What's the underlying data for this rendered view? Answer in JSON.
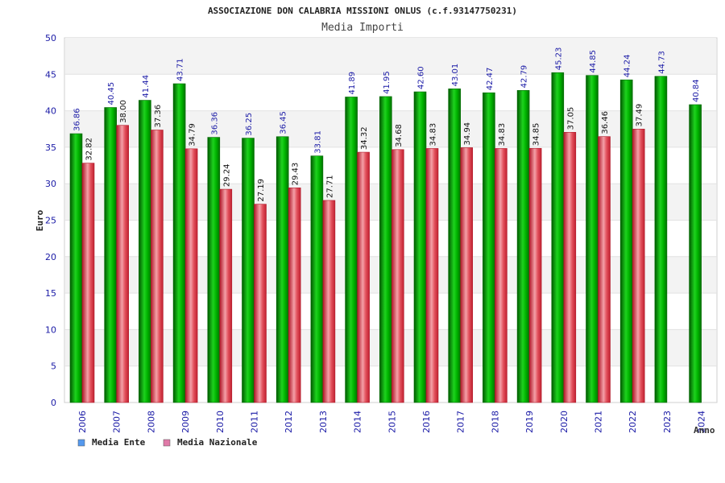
{
  "chart_data": {
    "type": "bar",
    "title": "ASSOCIAZIONE DON CALABRIA MISSIONI ONLUS (c.f.93147750231)",
    "subtitle": "Media Importi",
    "xlabel": "Anno",
    "ylabel": "Euro",
    "ylim": [
      0,
      50
    ],
    "yticks": [
      "0",
      "5",
      "10",
      "15",
      "20",
      "25",
      "30",
      "35",
      "40",
      "45",
      "50"
    ],
    "categories": [
      "2006",
      "2007",
      "2008",
      "2009",
      "2010",
      "2011",
      "2012",
      "2013",
      "2014",
      "2015",
      "2016",
      "2017",
      "2018",
      "2019",
      "2020",
      "2021",
      "2022",
      "2023",
      "2024"
    ],
    "series": [
      {
        "name": "Media Ente",
        "color": "#00b000",
        "values": [
          36.86,
          40.45,
          41.44,
          43.71,
          36.36,
          36.25,
          36.45,
          33.81,
          41.89,
          41.95,
          42.6,
          43.01,
          42.47,
          42.79,
          45.23,
          44.85,
          44.24,
          44.73,
          40.84
        ],
        "labels": [
          "36.86",
          "40.45",
          "41.44",
          "43.71",
          "36.36",
          "36.25",
          "36.45",
          "33.81",
          "41.89",
          "41.95",
          "42.60",
          "43.01",
          "42.47",
          "42.79",
          "45.23",
          "44.85",
          "44.24",
          "44.73",
          "40.84"
        ]
      },
      {
        "name": "Media Nazionale",
        "color": "#e03040",
        "values": [
          32.82,
          38.0,
          37.36,
          34.79,
          29.24,
          27.19,
          29.43,
          27.71,
          34.32,
          34.68,
          34.83,
          34.94,
          34.83,
          34.85,
          37.05,
          36.46,
          37.49,
          null,
          null
        ],
        "labels": [
          "32.82",
          "38.00",
          "37.36",
          "34.79",
          "29.24",
          "27.19",
          "29.43",
          "27.71",
          "34.32",
          "34.68",
          "34.83",
          "34.94",
          "34.83",
          "34.85",
          "37.05",
          "36.46",
          "37.49",
          null,
          null
        ]
      }
    ],
    "legend": {
      "position": "bottom-left",
      "items": [
        {
          "label": "Media Ente",
          "color": "#5599ee"
        },
        {
          "label": "Media Nazionale",
          "color": "#e07aa8"
        }
      ]
    },
    "grid": true
  }
}
